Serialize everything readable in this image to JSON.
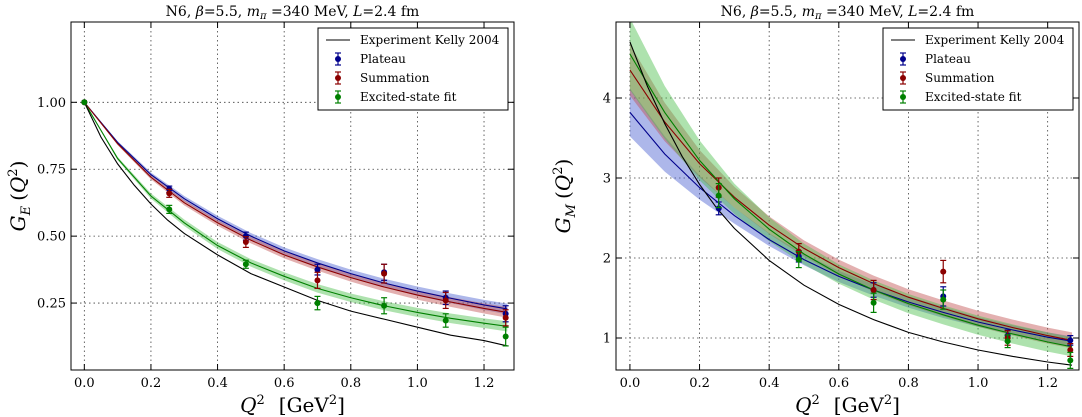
{
  "chart_data": [
    {
      "type": "scatter",
      "title": "N6, β=5.5, m_π =340 MeV, L=2.4 fm",
      "title_parts": {
        "pre": "N6, ",
        "beta": "β",
        "beta_val": "=5.5, ",
        "m": "m",
        "sub": "π",
        "m_val": " =340 MeV, ",
        "L": "L",
        "L_val": "=2.4 fm"
      },
      "xlabel": "Q² [GeV²]",
      "xlabel_parts": {
        "q": "Q",
        "exp": "2",
        "unit": "[GeV",
        "unit_exp": "2",
        "close": "]"
      },
      "ylabel": "G_E (Q²)",
      "ylabel_parts": {
        "g": "G",
        "sub": "E",
        "open": "(",
        "q": "Q",
        "exp": "2",
        "close": ")"
      },
      "xlim": [
        -0.04,
        1.29
      ],
      "ylim": [
        0.0,
        1.3
      ],
      "xticks": [
        0.0,
        0.2,
        0.4,
        0.6,
        0.8,
        1.0,
        1.2
      ],
      "xtick_labels": [
        "0.0",
        "0.2",
        "0.4",
        "0.6",
        "0.8",
        "1.0",
        "1.2"
      ],
      "yticks": [
        0.25,
        0.5,
        0.75,
        1.0
      ],
      "ytick_labels": [
        "0.25",
        "0.50",
        "0.75",
        "1.00"
      ],
      "grid": true,
      "legend": "top-right",
      "experiment": {
        "name": "Experiment Kelly 2004",
        "color": "#000000",
        "x": [
          0.0,
          0.05,
          0.1,
          0.15,
          0.2,
          0.25,
          0.3,
          0.4,
          0.5,
          0.6,
          0.7,
          0.8,
          0.9,
          1.0,
          1.1,
          1.2,
          1.27
        ],
        "y": [
          1.0,
          0.87,
          0.77,
          0.69,
          0.62,
          0.56,
          0.51,
          0.43,
          0.36,
          0.31,
          0.26,
          0.22,
          0.19,
          0.16,
          0.13,
          0.11,
          0.09
        ]
      },
      "series": [
        {
          "name": "Plateau",
          "color": "#00008b",
          "band_color": "#4a5fd0",
          "points": [
            {
              "x": 0.0,
              "y": 1.0,
              "err": 0.0
            },
            {
              "x": 0.255,
              "y": 0.675,
              "err": 0.012
            },
            {
              "x": 0.485,
              "y": 0.5,
              "err": 0.015
            },
            {
              "x": 0.7,
              "y": 0.375,
              "err": 0.02
            },
            {
              "x": 0.9,
              "y": 0.365,
              "err": 0.03
            },
            {
              "x": 1.085,
              "y": 0.27,
              "err": 0.025
            },
            {
              "x": 1.265,
              "y": 0.21,
              "err": 0.03
            }
          ],
          "fit": {
            "x": [
              0.0,
              0.1,
              0.2,
              0.3,
              0.4,
              0.5,
              0.6,
              0.7,
              0.8,
              0.9,
              1.0,
              1.1,
              1.2,
              1.27
            ],
            "y": [
              1.0,
              0.85,
              0.73,
              0.64,
              0.565,
              0.5,
              0.445,
              0.4,
              0.36,
              0.325,
              0.295,
              0.268,
              0.243,
              0.228
            ],
            "err": [
              0.0,
              0.005,
              0.008,
              0.01,
              0.011,
              0.012,
              0.013,
              0.014,
              0.015,
              0.016,
              0.017,
              0.018,
              0.019,
              0.02
            ]
          }
        },
        {
          "name": "Summation",
          "color": "#8b0000",
          "band_color": "#c05050",
          "points": [
            {
              "x": 0.0,
              "y": 1.0,
              "err": 0.0
            },
            {
              "x": 0.255,
              "y": 0.66,
              "err": 0.015
            },
            {
              "x": 0.485,
              "y": 0.478,
              "err": 0.02
            },
            {
              "x": 0.7,
              "y": 0.335,
              "err": 0.03
            },
            {
              "x": 0.9,
              "y": 0.36,
              "err": 0.035
            },
            {
              "x": 1.085,
              "y": 0.26,
              "err": 0.03
            },
            {
              "x": 1.265,
              "y": 0.195,
              "err": 0.03
            }
          ],
          "fit": {
            "x": [
              0.0,
              0.1,
              0.2,
              0.3,
              0.4,
              0.5,
              0.6,
              0.7,
              0.8,
              0.9,
              1.0,
              1.1,
              1.2,
              1.27
            ],
            "y": [
              1.0,
              0.845,
              0.72,
              0.625,
              0.55,
              0.485,
              0.43,
              0.385,
              0.345,
              0.31,
              0.28,
              0.254,
              0.23,
              0.215
            ],
            "err": [
              0.0,
              0.005,
              0.008,
              0.01,
              0.011,
              0.012,
              0.013,
              0.014,
              0.015,
              0.016,
              0.017,
              0.018,
              0.019,
              0.02
            ]
          }
        },
        {
          "name": "Excited-state fit",
          "color": "#008000",
          "band_color": "#4cbf4c",
          "points": [
            {
              "x": 0.0,
              "y": 1.0,
              "err": 0.0
            },
            {
              "x": 0.255,
              "y": 0.6,
              "err": 0.015
            },
            {
              "x": 0.485,
              "y": 0.395,
              "err": 0.015
            },
            {
              "x": 0.7,
              "y": 0.25,
              "err": 0.025
            },
            {
              "x": 0.9,
              "y": 0.24,
              "err": 0.03
            },
            {
              "x": 1.085,
              "y": 0.185,
              "err": 0.025
            },
            {
              "x": 1.265,
              "y": 0.125,
              "err": 0.035
            }
          ],
          "fit": {
            "x": [
              0.0,
              0.1,
              0.2,
              0.3,
              0.4,
              0.5,
              0.6,
              0.7,
              0.8,
              0.9,
              1.0,
              1.1,
              1.2,
              1.27
            ],
            "y": [
              1.0,
              0.79,
              0.65,
              0.55,
              0.465,
              0.4,
              0.35,
              0.305,
              0.27,
              0.24,
              0.215,
              0.193,
              0.175,
              0.163
            ],
            "err": [
              0.0,
              0.006,
              0.01,
              0.012,
              0.013,
              0.014,
              0.015,
              0.016,
              0.016,
              0.017,
              0.017,
              0.018,
              0.018,
              0.019
            ]
          }
        }
      ]
    },
    {
      "type": "scatter",
      "title": "N6, β=5.5, m_π =340 MeV, L=2.4 fm",
      "title_parts": {
        "pre": "N6, ",
        "beta": "β",
        "beta_val": "=5.5, ",
        "m": "m",
        "sub": "π",
        "m_val": " =340 MeV, ",
        "L": "L",
        "L_val": "=2.4 fm"
      },
      "xlabel": "Q² [GeV²]",
      "xlabel_parts": {
        "q": "Q",
        "exp": "2",
        "unit": "[GeV",
        "unit_exp": "2",
        "close": "]"
      },
      "ylabel": "G_M (Q²)",
      "ylabel_parts": {
        "g": "G",
        "sub": "M",
        "open": "(",
        "q": "Q",
        "exp": "2",
        "close": ")"
      },
      "xlim": [
        -0.04,
        1.29
      ],
      "ylim": [
        0.6,
        4.95
      ],
      "xticks": [
        0.0,
        0.2,
        0.4,
        0.6,
        0.8,
        1.0,
        1.2
      ],
      "xtick_labels": [
        "0.0",
        "0.2",
        "0.4",
        "0.6",
        "0.8",
        "1.0",
        "1.2"
      ],
      "yticks": [
        1,
        2,
        3,
        4
      ],
      "ytick_labels": [
        "1",
        "2",
        "3",
        "4"
      ],
      "grid": true,
      "legend": "top-right",
      "experiment": {
        "name": "Experiment Kelly 2004",
        "color": "#000000",
        "x": [
          0.0,
          0.05,
          0.1,
          0.15,
          0.2,
          0.25,
          0.3,
          0.4,
          0.5,
          0.6,
          0.7,
          0.8,
          0.9,
          1.0,
          1.1,
          1.2,
          1.27
        ],
        "y": [
          4.7,
          4.15,
          3.68,
          3.27,
          2.92,
          2.62,
          2.37,
          1.97,
          1.66,
          1.42,
          1.23,
          1.07,
          0.95,
          0.85,
          0.77,
          0.7,
          0.66
        ]
      },
      "series": [
        {
          "name": "Plateau",
          "color": "#00008b",
          "band_color": "#4a5fd0",
          "points": [
            {
              "x": 0.255,
              "y": 2.62,
              "err": 0.08
            },
            {
              "x": 0.485,
              "y": 2.02,
              "err": 0.07
            },
            {
              "x": 0.7,
              "y": 1.6,
              "err": 0.09
            },
            {
              "x": 0.9,
              "y": 1.52,
              "err": 0.12
            },
            {
              "x": 1.085,
              "y": 1.03,
              "err": 0.07
            },
            {
              "x": 1.265,
              "y": 0.97,
              "err": 0.06
            }
          ],
          "fit": {
            "x": [
              0.0,
              0.1,
              0.2,
              0.3,
              0.4,
              0.5,
              0.6,
              0.7,
              0.8,
              0.9,
              1.0,
              1.1,
              1.2,
              1.27
            ],
            "y": [
              3.82,
              3.3,
              2.88,
              2.53,
              2.23,
              1.98,
              1.77,
              1.6,
              1.45,
              1.32,
              1.2,
              1.1,
              1.01,
              0.96
            ],
            "err": [
              0.3,
              0.22,
              0.15,
              0.1,
              0.08,
              0.07,
              0.07,
              0.07,
              0.07,
              0.07,
              0.06,
              0.06,
              0.06,
              0.06
            ]
          }
        },
        {
          "name": "Summation",
          "color": "#8b0000",
          "band_color": "#c05050",
          "points": [
            {
              "x": 0.255,
              "y": 2.88,
              "err": 0.12
            },
            {
              "x": 0.485,
              "y": 2.08,
              "err": 0.1
            },
            {
              "x": 0.7,
              "y": 1.6,
              "err": 0.12
            },
            {
              "x": 0.9,
              "y": 1.83,
              "err": 0.14
            },
            {
              "x": 1.085,
              "y": 1.0,
              "err": 0.09
            },
            {
              "x": 1.265,
              "y": 0.85,
              "err": 0.08
            }
          ],
          "fit": {
            "x": [
              0.0,
              0.1,
              0.2,
              0.3,
              0.4,
              0.5,
              0.6,
              0.7,
              0.8,
              0.9,
              1.0,
              1.1,
              1.2,
              1.27
            ],
            "y": [
              4.35,
              3.7,
              3.18,
              2.76,
              2.41,
              2.12,
              1.88,
              1.68,
              1.51,
              1.37,
              1.24,
              1.13,
              1.03,
              0.97
            ],
            "err": [
              0.32,
              0.24,
              0.17,
              0.13,
              0.11,
              0.1,
              0.1,
              0.1,
              0.1,
              0.1,
              0.1,
              0.1,
              0.1,
              0.1
            ]
          }
        },
        {
          "name": "Excited-state fit",
          "color": "#008000",
          "band_color": "#4cbf4c",
          "points": [
            {
              "x": 0.255,
              "y": 2.78,
              "err": 0.15
            },
            {
              "x": 0.485,
              "y": 1.98,
              "err": 0.1
            },
            {
              "x": 0.7,
              "y": 1.44,
              "err": 0.12
            },
            {
              "x": 0.9,
              "y": 1.48,
              "err": 0.12
            },
            {
              "x": 1.085,
              "y": 0.96,
              "err": 0.08
            },
            {
              "x": 1.265,
              "y": 0.72,
              "err": 0.1
            }
          ],
          "fit": {
            "x": [
              0.0,
              0.1,
              0.2,
              0.3,
              0.4,
              0.5,
              0.6,
              0.7,
              0.8,
              0.9,
              1.0,
              1.1,
              1.2,
              1.27
            ],
            "y": [
              4.55,
              3.82,
              3.22,
              2.74,
              2.36,
              2.05,
              1.8,
              1.6,
              1.43,
              1.29,
              1.16,
              1.05,
              0.95,
              0.89
            ],
            "err": [
              0.45,
              0.33,
              0.25,
              0.19,
              0.15,
              0.13,
              0.12,
              0.12,
              0.12,
              0.12,
              0.12,
              0.12,
              0.12,
              0.12
            ]
          }
        }
      ]
    }
  ]
}
